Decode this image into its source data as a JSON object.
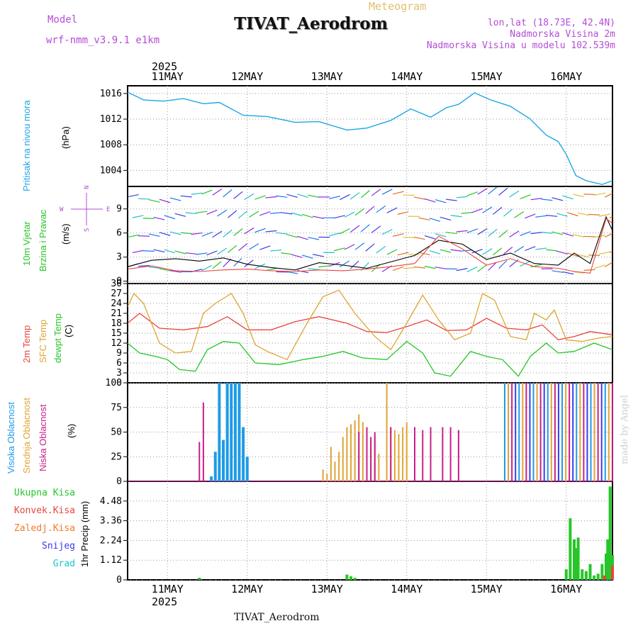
{
  "header": {
    "model_label": "Model",
    "model_name": "wrf-nmm_v3.9.1 e1km",
    "meteogram_label": "Meteogram",
    "station_title": "TIVAT_Aerodrom",
    "lonlat": "lon,lat (18.73E, 42.4N)",
    "elevation": "Nadmorska Visina 2m",
    "model_elevation": "Nadmorska Visina u modelu 102.539m"
  },
  "footer": {
    "station": "TIVAT_Aerodrom",
    "credit": "made by Angel"
  },
  "colors": {
    "pressure": "#1ea7e6",
    "t2m": "#e8453c",
    "sfc": "#e0a432",
    "dewpt": "#26c628",
    "high_cloud": "#1e9be6",
    "mid_cloud": "#e0a432",
    "low_cloud": "#c81e8c",
    "rain_total": "#26c628",
    "rain_conv": "#e8453c",
    "rain_frz": "#f07c28",
    "snow": "#3c3ce8",
    "hail": "#1ec8c8",
    "wind_label": "#26c628",
    "compass": "#b44cd8"
  },
  "chart_data": [
    {
      "panel": "pressure",
      "type": "line",
      "ylabel": "(hPa)",
      "side_label": "Pritisak na nivou mora",
      "yticks": [
        "1004",
        "1008",
        "1012",
        "1016"
      ],
      "ylim": [
        1001.5,
        1017.2
      ],
      "series": [
        {
          "x": [
            0,
            0.2,
            0.45,
            0.7,
            0.95,
            1.15,
            1.45,
            1.75,
            2.1,
            2.4,
            2.75,
            3.0,
            3.3,
            3.55,
            3.8,
            4.0,
            4.15,
            4.35,
            4.55,
            4.8,
            5.05,
            5.25,
            5.4,
            5.5,
            5.62,
            5.75,
            5.85,
            5.95,
            6.08
          ],
          "values": [
            1016.2,
            1015,
            1014.8,
            1015.2,
            1014.4,
            1014.6,
            1012.6,
            1012.4,
            1011.5,
            1011.6,
            1010.3,
            1010.6,
            1011.8,
            1013.6,
            1012.3,
            1013.8,
            1014.3,
            1016.1,
            1015,
            1014,
            1012,
            1009.5,
            1008.5,
            1006.5,
            1003.2,
            1002.4,
            1002.1,
            1001.8,
            1002.4
          ]
        }
      ]
    },
    {
      "panel": "wind",
      "type": "line",
      "ylabel": "(m/s)",
      "side_label": [
        "10m Vjetar",
        "Brzina i Pravac"
      ],
      "compass_labels": [
        "N",
        "W",
        "E",
        "S"
      ],
      "yticks": [
        "0",
        "3",
        "6",
        "9"
      ],
      "ylim": [
        -0.3,
        11.8
      ],
      "series": [
        {
          "name": "speed",
          "x": [
            0,
            0.3,
            0.6,
            0.9,
            1.2,
            1.5,
            1.8,
            2.1,
            2.4,
            2.7,
            3.0,
            3.3,
            3.6,
            3.9,
            4.2,
            4.5,
            4.8,
            5.1,
            5.4,
            5.6,
            5.8,
            6.0,
            6.08
          ],
          "values": [
            1.8,
            2.6,
            2.8,
            2.5,
            2.9,
            2.1,
            1.7,
            1.4,
            2.3,
            2.0,
            1.6,
            2.4,
            3.2,
            5.1,
            4.6,
            2.7,
            3.5,
            2.2,
            2.0,
            3.5,
            2.2,
            8.0,
            6.3
          ]
        },
        {
          "name": "gust",
          "x": [
            0,
            0.3,
            0.6,
            0.9,
            1.2,
            1.5,
            1.8,
            2.1,
            2.4,
            2.7,
            3.0,
            3.3,
            3.6,
            3.9,
            4.2,
            4.5,
            4.8,
            5.1,
            5.4,
            5.6,
            5.8,
            6.0,
            6.08
          ],
          "values": [
            1.5,
            1.9,
            1.3,
            1.2,
            1.4,
            1.5,
            1.3,
            1.2,
            1.4,
            1.3,
            1.5,
            1.8,
            2.2,
            5.6,
            4.0,
            2.0,
            2.8,
            1.8,
            1.6,
            1.2,
            1.0,
            7.8,
            7.2
          ]
        }
      ]
    },
    {
      "panel": "temperature",
      "type": "line",
      "ylabel": "(C)",
      "side_label": [
        "2m Temp",
        "SFC Temp",
        "dewpt Temp"
      ],
      "yticks": [
        "0",
        "3",
        "6",
        "9",
        "12",
        "15",
        "18",
        "21",
        "24",
        "27",
        "30"
      ],
      "ylim": [
        0,
        30
      ],
      "series": [
        {
          "name": "2m",
          "x": [
            0,
            0.15,
            0.4,
            0.7,
            1.0,
            1.25,
            1.5,
            1.8,
            2.1,
            2.4,
            2.75,
            3.0,
            3.25,
            3.5,
            3.75,
            4.0,
            4.25,
            4.5,
            4.75,
            5.0,
            5.2,
            5.4,
            5.6,
            5.8,
            6.08
          ],
          "values": [
            18,
            21,
            16.5,
            16,
            17,
            20,
            16,
            16,
            18.5,
            20,
            18,
            15.5,
            15.2,
            17,
            19,
            15.8,
            16,
            19.5,
            16.5,
            16,
            17.5,
            13,
            14,
            15.5,
            14.5
          ]
        },
        {
          "name": "sfc",
          "x": [
            0,
            0.08,
            0.2,
            0.4,
            0.6,
            0.8,
            0.95,
            1.1,
            1.3,
            1.45,
            1.6,
            1.75,
            2.0,
            2.25,
            2.45,
            2.65,
            2.85,
            3.1,
            3.3,
            3.5,
            3.7,
            3.9,
            4.1,
            4.3,
            4.45,
            4.6,
            4.8,
            5.0,
            5.1,
            5.25,
            5.35,
            5.5,
            5.7,
            5.9,
            6.08
          ],
          "values": [
            23,
            27,
            24,
            12,
            9,
            9.5,
            21,
            24,
            27,
            21,
            11.5,
            9.5,
            7,
            18,
            26,
            28,
            21,
            14,
            10,
            18,
            26.5,
            19,
            13,
            15,
            27,
            25,
            14,
            13,
            21,
            19,
            22,
            13,
            12.5,
            13.5,
            14
          ]
        },
        {
          "name": "dewpt",
          "x": [
            0,
            0.15,
            0.35,
            0.5,
            0.65,
            0.85,
            1.0,
            1.2,
            1.4,
            1.6,
            1.9,
            2.2,
            2.45,
            2.7,
            2.95,
            3.25,
            3.5,
            3.7,
            3.85,
            4.05,
            4.3,
            4.5,
            4.7,
            4.9,
            5.05,
            5.25,
            5.4,
            5.6,
            5.85,
            6.08
          ],
          "values": [
            12,
            9,
            8,
            7,
            4,
            3.5,
            10,
            12.5,
            12,
            6,
            5.5,
            7,
            8,
            9.5,
            7.5,
            7,
            12.5,
            9,
            3,
            2,
            9.5,
            8,
            7,
            2,
            8,
            12,
            9,
            9.5,
            12,
            10
          ]
        }
      ]
    },
    {
      "panel": "cloud",
      "type": "bar",
      "ylabel": "(%)",
      "side_label": [
        "Visoka Oblacnost",
        "Srednja Oblacnost",
        "Niska Oblacnost"
      ],
      "yticks": [
        "0",
        "25",
        "50",
        "75",
        "100"
      ],
      "ylim": [
        0,
        100
      ],
      "series": [
        {
          "name": "high",
          "x": [
            1.05,
            1.1,
            1.15,
            1.2,
            1.25,
            1.3,
            1.35,
            1.4,
            1.45,
            1.5,
            1.55
          ],
          "values": [
            5,
            30,
            100,
            42,
            100,
            100,
            100,
            100,
            55,
            25,
            0
          ]
        },
        {
          "name": "mid",
          "x": [
            2.45,
            2.5,
            2.55,
            2.6,
            2.65,
            2.7,
            2.75,
            2.8,
            2.85,
            2.9,
            2.95,
            3.0,
            3.05,
            3.1,
            3.15,
            3.25,
            3.3,
            3.35,
            3.4,
            3.45,
            3.5
          ],
          "values": [
            12,
            8,
            35,
            20,
            30,
            45,
            55,
            58,
            62,
            68,
            60,
            55,
            40,
            45,
            28,
            100,
            55,
            52,
            48,
            55,
            60
          ]
        },
        {
          "name": "low",
          "x": [
            0.9,
            0.95,
            2.9,
            3.0,
            3.05,
            3.1,
            3.3,
            3.6,
            3.7,
            3.8,
            3.95,
            4.05,
            4.15
          ],
          "values": [
            40,
            80,
            50,
            55,
            45,
            50,
            55,
            55,
            52,
            55,
            55,
            55,
            52
          ]
        }
      ],
      "dense_block": {
        "x_start": 4.72,
        "x_end": 6.08,
        "value": 100
      }
    },
    {
      "panel": "precip",
      "type": "bar",
      "ylabel": "1hr Precip (mm)",
      "side_label": [
        "Ukupna Kisa",
        "Konvek.Kisa",
        "Zaledj.Kisa",
        "Snijeg",
        "Grad"
      ],
      "yticks": [
        "0",
        "1.12",
        "2.24",
        "3.36",
        "4.48"
      ],
      "ylim": [
        0,
        5.6
      ],
      "series": [
        {
          "name": "total",
          "x": [
            0.9,
            2.75,
            2.8,
            2.85,
            5.5,
            5.55,
            5.6,
            5.62,
            5.65,
            5.7,
            5.75,
            5.8,
            5.85,
            5.9,
            5.95,
            6.0,
            6.02,
            6.05,
            6.08
          ],
          "values": [
            0.12,
            0.3,
            0.2,
            0.12,
            0.6,
            3.5,
            2.3,
            1.8,
            2.4,
            0.6,
            0.5,
            0.9,
            0.25,
            0.35,
            0.9,
            1.5,
            2.3,
            5.3,
            1.4
          ]
        },
        {
          "name": "conv",
          "x": [
            5.98,
            6.08
          ],
          "values": [
            0.25,
            0.8
          ]
        }
      ]
    }
  ],
  "x_axis": {
    "year": "2025",
    "day_labels": [
      "11MAY",
      "12MAY",
      "13MAY",
      "14MAY",
      "15MAY",
      "16MAY"
    ]
  }
}
